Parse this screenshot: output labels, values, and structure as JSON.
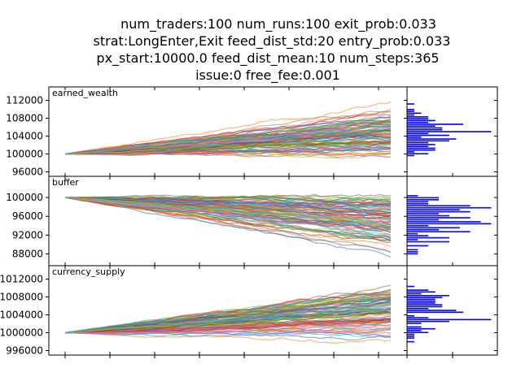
{
  "title_lines": [
    "num_traders:100  num_runs:100  exit_prob:0.033",
    "strat:LongEnter,Exit  feed_dist_std:20  entry_prob:0.033",
    "px_start:10000.0  feed_dist_mean:10  num_steps:365",
    "issue:0  free_fee:0.001"
  ],
  "chart_data": [
    {
      "type": "line",
      "panel": "earned_wealth",
      "label": "earned_wealth",
      "num_runs": 100,
      "x_range": [
        0,
        365
      ],
      "start_value": 100000,
      "final_range": [
        96500,
        113000
      ],
      "ylim": [
        95000,
        115000
      ],
      "yticks": [
        96000,
        100000,
        104000,
        108000,
        112000
      ],
      "ytick_labels": [
        "96000",
        "100000",
        "104000",
        "108000",
        "112000"
      ],
      "histogram": {
        "orientation": "horizontal",
        "color": "#0000ff",
        "bins": 40,
        "max_count": 8
      }
    },
    {
      "type": "line",
      "panel": "buffer",
      "label": "buffer",
      "num_runs": 100,
      "x_range": [
        0,
        365
      ],
      "start_value": 100000,
      "final_range": [
        86500,
        103500
      ],
      "ylim": [
        85500,
        104500
      ],
      "yticks": [
        88000,
        92000,
        96000,
        100000
      ],
      "ytick_labels": [
        "88000",
        "92000",
        "96000",
        "100000"
      ],
      "histogram": {
        "orientation": "horizontal",
        "color": "#0000ff",
        "bins": 40,
        "max_count": 9
      }
    },
    {
      "type": "line",
      "panel": "currency_supply",
      "label": "currency_supply",
      "num_runs": 100,
      "x_range": [
        0,
        365
      ],
      "start_value": 1000000,
      "final_range": [
        996500,
        1013000
      ],
      "ylim": [
        995000,
        1015000
      ],
      "yticks": [
        996000,
        1000000,
        1004000,
        1008000,
        1012000
      ],
      "ytick_labels": [
        "996000",
        "1000000",
        "1004000",
        "1008000",
        "1012000"
      ],
      "histogram": {
        "orientation": "horizontal",
        "color": "#0000ff",
        "bins": 40,
        "max_count": 8
      }
    }
  ],
  "line_colors": [
    "#1f77b4",
    "#ff7f0e",
    "#2ca02c",
    "#d62728",
    "#9467bd",
    "#8c564b",
    "#e377c2",
    "#7f7f7f",
    "#bcbd22",
    "#17becf"
  ]
}
